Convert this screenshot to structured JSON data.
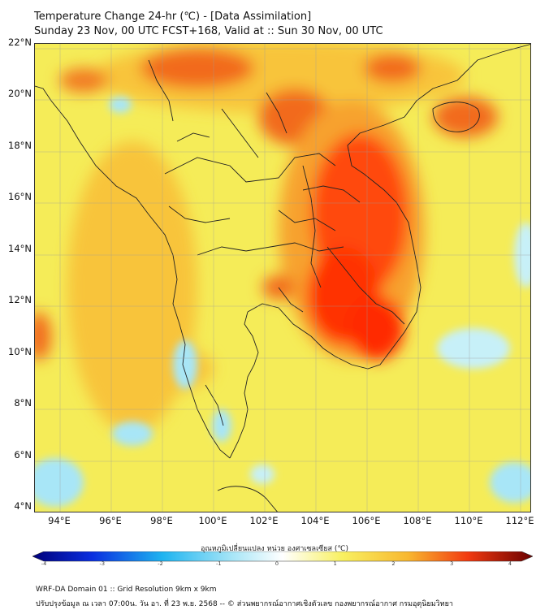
{
  "title": {
    "line1": "Temperature Change 24-hr (℃) - [Data Assimilation]",
    "line2": "Sunday 23 Nov, 00 UTC FCST+168, Valid at :: Sun 30 Nov, 00 UTC"
  },
  "map": {
    "lat_ticks": [
      "22°N",
      "20°N",
      "18°N",
      "16°N",
      "14°N",
      "12°N",
      "10°N",
      "8°N",
      "6°N",
      "4°N"
    ],
    "lon_ticks": [
      "94°E",
      "96°E",
      "98°E",
      "100°E",
      "102°E",
      "104°E",
      "106°E",
      "108°E",
      "110°E",
      "112°E"
    ],
    "colors": {
      "warm_base": "#f7ee5a",
      "hot": "#ff2a00",
      "cool": "#a8e6f7"
    }
  },
  "colorbar": {
    "label": "อุณหภูมิเปลี่ยนแปลง หน่วย องศาเซลเซียส (℃)",
    "ticks": [
      "-4",
      "-3",
      "-2",
      "-1",
      "0",
      "1",
      "2",
      "3",
      "4"
    ]
  },
  "footer": {
    "line1": "WRF-DA Domain 01 :: Grid Resolution 9km x 9km",
    "line2": "ปรับปรุงข้อมูล ณ เวลา 07:00น. วัน อา. ที่ 23 พ.ย. 2568 -- © ส่วนพยากรณ์อากาศเชิงตัวเลข กองพยากรณ์อากาศ กรมอุตุนิยมวิทยา"
  }
}
